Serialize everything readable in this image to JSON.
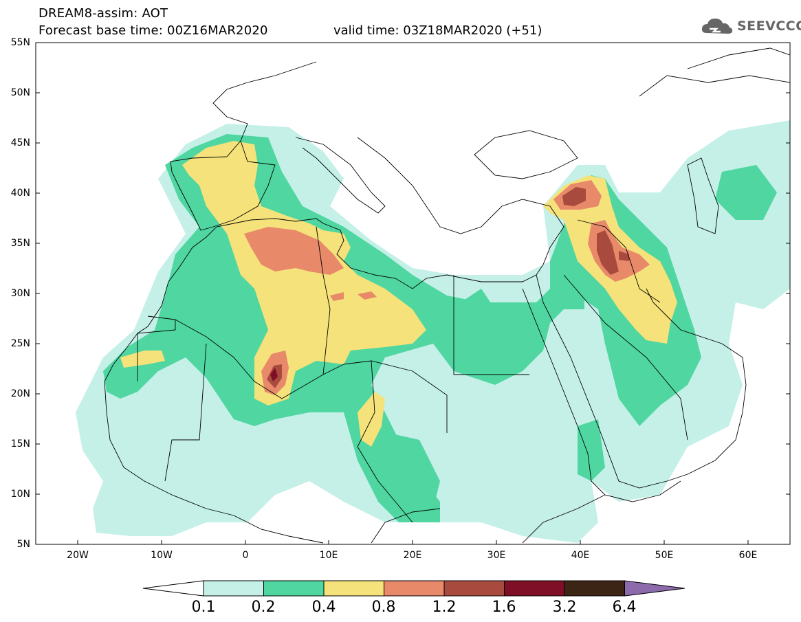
{
  "header": {
    "title": "DREAM8-assim: AOT",
    "base_time": "Forecast base time: 00Z16MAR2020",
    "valid_time": "valid time: 03Z18MAR2020 (+51)"
  },
  "logo": {
    "text": "SEEVCCC",
    "icon": "cloud-icon"
  },
  "axes": {
    "lat_labels": [
      "55N",
      "50N",
      "45N",
      "40N",
      "35N",
      "30N",
      "25N",
      "20N",
      "15N",
      "10N",
      "5N"
    ],
    "lon_labels": [
      "20W",
      "10W",
      "0",
      "10E",
      "20E",
      "30E",
      "40E",
      "50E",
      "60E"
    ],
    "lon_range": [
      -25,
      65
    ],
    "lat_range": [
      5,
      55
    ]
  },
  "colorbar": {
    "labels": [
      "0.1",
      "0.2",
      "0.4",
      "0.8",
      "1.2",
      "1.6",
      "3.2",
      "6.4"
    ],
    "colors": [
      "#ffffff",
      "#c4f0e8",
      "#4fd6a1",
      "#f5e27a",
      "#e8896a",
      "#a94a3f",
      "#7e0f26",
      "#3d2516",
      "#8c6aab"
    ]
  },
  "colors": {
    "c01": "#c4f0e8",
    "c02": "#4fd6a1",
    "c04": "#f5e27a",
    "c08": "#e8896a",
    "c12": "#a94a3f",
    "c16": "#7e0f26"
  }
}
